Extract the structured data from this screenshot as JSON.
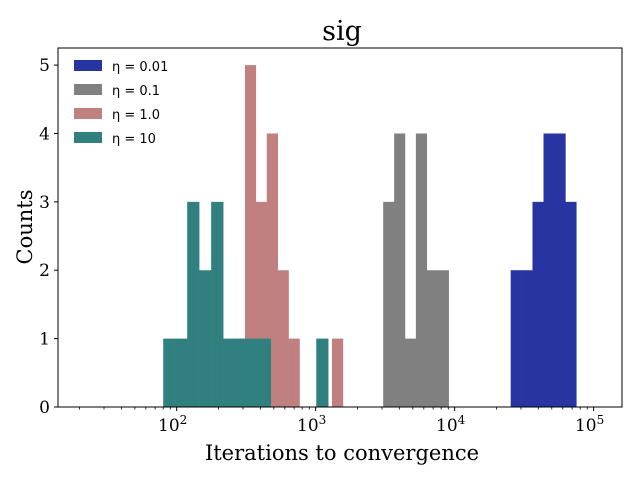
{
  "chart_data": {
    "type": "histogram",
    "title": "sig",
    "xlabel": "Iterations to convergence",
    "ylabel": "Counts",
    "xscale": "log",
    "xlim": [
      14,
      160000
    ],
    "ylim": [
      0,
      5.25
    ],
    "xticks": [
      {
        "value": 100,
        "base": "10",
        "exp": "2"
      },
      {
        "value": 1000,
        "base": "10",
        "exp": "3"
      },
      {
        "value": 10000,
        "base": "10",
        "exp": "4"
      },
      {
        "value": 100000,
        "base": "10",
        "exp": "5"
      }
    ],
    "yticks": [
      "0",
      "1",
      "2",
      "3",
      "4",
      "5"
    ],
    "legend_position": "top-left",
    "series": [
      {
        "name": "η = 0.01",
        "legend_label": "η = 0.01",
        "color": "#2834a2",
        "bins": [
          {
            "x0": 25300,
            "x1": 30300,
            "count": 2
          },
          {
            "x0": 30300,
            "x1": 36300,
            "count": 2
          },
          {
            "x0": 36300,
            "x1": 43600,
            "count": 3
          },
          {
            "x0": 43600,
            "x1": 52200,
            "count": 4
          },
          {
            "x0": 52200,
            "x1": 62600,
            "count": 4
          },
          {
            "x0": 62600,
            "x1": 75000,
            "count": 3
          }
        ]
      },
      {
        "name": "η = 0.1",
        "legend_label": "η = 0.1",
        "color": "#808080",
        "bins": [
          {
            "x0": 3060,
            "x1": 3670,
            "count": 3
          },
          {
            "x0": 3670,
            "x1": 4390,
            "count": 4
          },
          {
            "x0": 4390,
            "x1": 5260,
            "count": 1
          },
          {
            "x0": 5260,
            "x1": 6300,
            "count": 4
          },
          {
            "x0": 6300,
            "x1": 7550,
            "count": 2
          },
          {
            "x0": 7550,
            "x1": 9050,
            "count": 2
          }
        ]
      },
      {
        "name": "η = 1.0",
        "legend_label": "η = 1.0",
        "color": "#c08080",
        "bins": [
          {
            "x0": 258,
            "x1": 310,
            "count": 1
          },
          {
            "x0": 310,
            "x1": 371,
            "count": 5
          },
          {
            "x0": 371,
            "x1": 445,
            "count": 3
          },
          {
            "x0": 445,
            "x1": 533,
            "count": 4
          },
          {
            "x0": 533,
            "x1": 638,
            "count": 2
          },
          {
            "x0": 638,
            "x1": 765,
            "count": 1
          },
          {
            "x0": 1310,
            "x1": 1570,
            "count": 1
          }
        ]
      },
      {
        "name": "η = 10",
        "legend_label": "η = 10",
        "color": "#318080",
        "bins": [
          {
            "x0": 80,
            "x1": 97.5,
            "count": 1
          },
          {
            "x0": 97.5,
            "x1": 119,
            "count": 1
          },
          {
            "x0": 119,
            "x1": 145,
            "count": 3
          },
          {
            "x0": 145,
            "x1": 177,
            "count": 2
          },
          {
            "x0": 177,
            "x1": 216,
            "count": 3
          },
          {
            "x0": 216,
            "x1": 263,
            "count": 1
          },
          {
            "x0": 263,
            "x1": 320,
            "count": 1
          },
          {
            "x0": 320,
            "x1": 390,
            "count": 1
          },
          {
            "x0": 390,
            "x1": 475,
            "count": 1
          },
          {
            "x0": 1010,
            "x1": 1230,
            "count": 1
          }
        ]
      }
    ]
  }
}
